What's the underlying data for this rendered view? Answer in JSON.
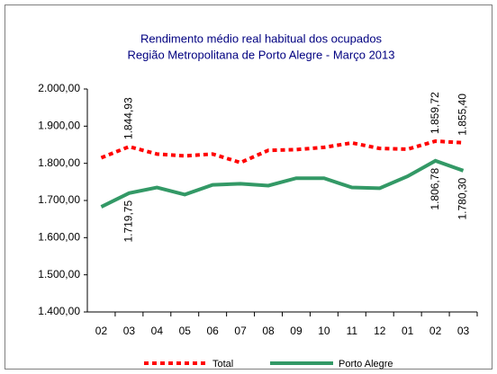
{
  "chart_data": {
    "type": "line",
    "title": "Rendimento médio real habitual dos ocupados",
    "subtitle": "Região Metropolitana de Porto Alegre - Março 2013",
    "categories": [
      "02",
      "03",
      "04",
      "05",
      "06",
      "07",
      "08",
      "09",
      "10",
      "11",
      "12",
      "01",
      "02",
      "03"
    ],
    "series": [
      {
        "name": "Total",
        "color": "#ff0000",
        "dashed": true,
        "values": [
          1815,
          1844.93,
          1825,
          1820,
          1825,
          1802,
          1835,
          1837,
          1843,
          1855,
          1840,
          1838,
          1859.72,
          1855.4
        ],
        "value_labels": [
          null,
          "1.844,93",
          null,
          null,
          null,
          null,
          null,
          null,
          null,
          null,
          null,
          null,
          "1.859,72",
          "1.855,40"
        ]
      },
      {
        "name": "Porto Alegre",
        "color": "#339966",
        "dashed": false,
        "values": [
          1683,
          1719.75,
          1735,
          1716,
          1742,
          1745,
          1740,
          1760,
          1760,
          1735,
          1733,
          1765,
          1806.78,
          1780.3
        ],
        "value_labels": [
          null,
          "1.719,75",
          null,
          null,
          null,
          null,
          null,
          null,
          null,
          null,
          null,
          null,
          "1.806,78",
          "1.780,30"
        ]
      }
    ],
    "ylim": [
      1400,
      2000
    ],
    "yticks": [
      {
        "value": 1400,
        "label": "1.400,00"
      },
      {
        "value": 1500,
        "label": "1.500,00"
      },
      {
        "value": 1600,
        "label": "1.600,00"
      },
      {
        "value": 1700,
        "label": "1.700,00"
      },
      {
        "value": 1800,
        "label": "1.800,00"
      },
      {
        "value": 1900,
        "label": "1.900,00"
      },
      {
        "value": 2000,
        "label": "2.000,00"
      }
    ],
    "grid": false,
    "legend": "bottom"
  }
}
